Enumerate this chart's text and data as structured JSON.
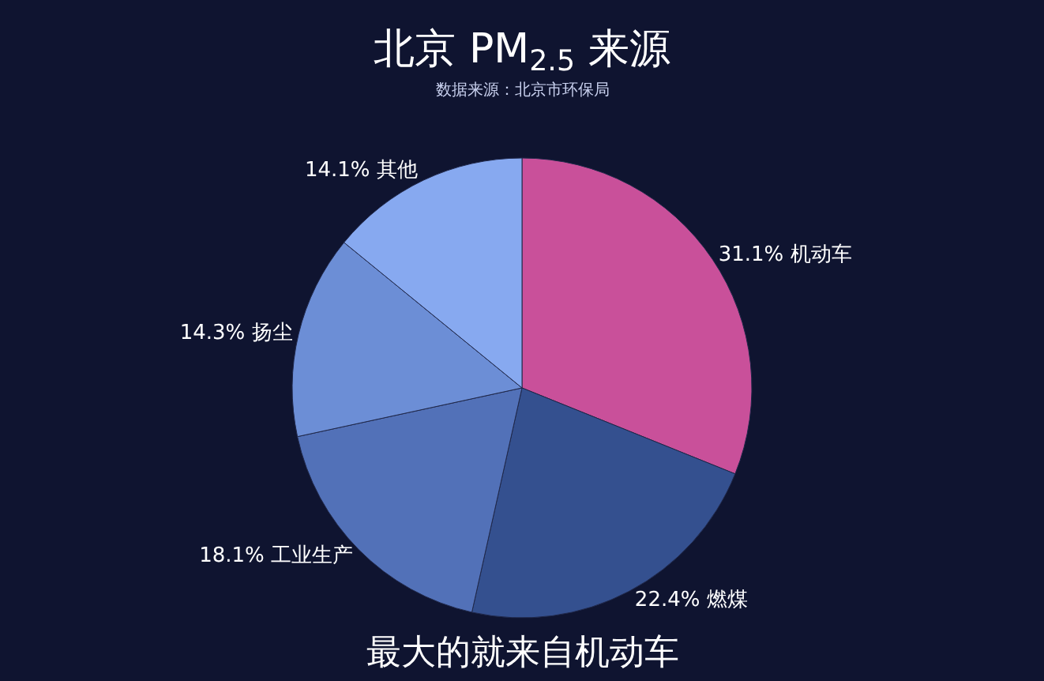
{
  "chart_data": {
    "type": "pie",
    "title": "北京 PM$_{2.5}$ 来源",
    "subtitle": "数据来源：北京市环保局",
    "categories": [
      "机动车",
      "燃煤",
      "工业生产",
      "扬尘",
      "其他"
    ],
    "values": [
      31.1,
      22.4,
      18.1,
      14.3,
      14.1
    ],
    "value_labels": [
      "31.1%",
      "22.4%",
      "18.1%",
      "14.3%",
      "14.1%"
    ],
    "colors": [
      "#c9509a",
      "#34508f",
      "#5271b8",
      "#6c8ed6",
      "#87a9f0"
    ],
    "annotations": [
      "最大的就来自机动车"
    ],
    "legend": false
  }
}
